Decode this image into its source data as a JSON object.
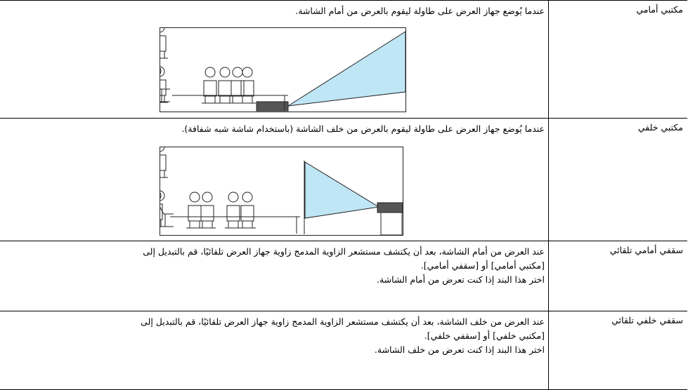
{
  "table": {
    "rows": [
      {
        "label": "مكتبي أمامي",
        "description": [
          "عندما يُوضع جهاز العرض على طاولة ليقوم بالعرض من أمام الشاشة."
        ]
      },
      {
        "label": "مكتبي خلفي",
        "description": [
          "عندما يُوضع جهاز العرض على طاولة ليقوم بالعرض من خلف الشاشة (باستخدام شاشة شبه شفافة)."
        ]
      },
      {
        "label": "سقفي أمامي تلقائي",
        "description": [
          "عند العرض من أمام الشاشة، بعد أن يكتشف مستشعر الزاوية المدمج زاوية جهاز العرض تلقائيًا، قم بالتبديل إلى",
          "[مكتبي أمامي] أو [سقفي أمامي].",
          "اختر هذا البند إذا كنت تعرض من أمام الشاشة."
        ]
      },
      {
        "label": "سقفي خلفي تلقائي",
        "description": [
          "عند العرض من خلف الشاشة، بعد أن يكتشف مستشعر الزاوية المدمج زاوية جهاز العرض تلقائيًا، قم بالتبديل إلى",
          "[مكتبي خلفي] أو [سقفي خلفي].",
          "اختر هذا البند إذا كنت تعرض من خلف الشاشة."
        ]
      }
    ]
  }
}
